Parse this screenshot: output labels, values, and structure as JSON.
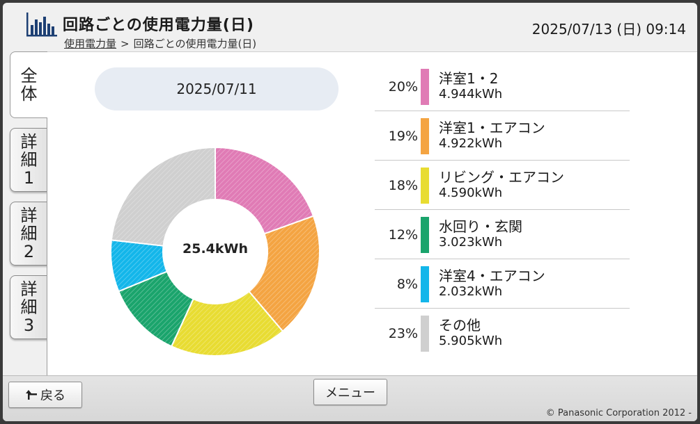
{
  "header": {
    "title": "回路ごとの使用電力量(日)",
    "breadcrumb": {
      "link": "使用電力量",
      "separator": ">",
      "current": "回路ごとの使用電力量(日)"
    },
    "datetime": "2025/07/13 (日) 09:14",
    "logo_icon": "bar-chart-logo-icon"
  },
  "tabs": [
    {
      "id": "all",
      "lines": [
        "全",
        "体"
      ],
      "active": true
    },
    {
      "id": "d1",
      "lines": [
        "詳",
        "細",
        "1"
      ],
      "active": false
    },
    {
      "id": "d2",
      "lines": [
        "詳",
        "細",
        "2"
      ],
      "active": false
    },
    {
      "id": "d3",
      "lines": [
        "詳",
        "細",
        "3"
      ],
      "active": false
    }
  ],
  "main": {
    "date": "2025/07/11",
    "total": "25.4kWh"
  },
  "chart_data": {
    "type": "pie",
    "categories": [
      "洋室1・2",
      "洋室1・エアコン",
      "リビング・エアコン",
      "水回り・玄関",
      "洋室4・エアコン",
      "その他"
    ],
    "values": [
      4.944,
      4.922,
      4.59,
      3.023,
      2.032,
      5.905
    ],
    "percent_labels": [
      "20%",
      "19%",
      "18%",
      "12%",
      "8%",
      "23%"
    ],
    "value_labels": [
      "4.944kWh",
      "4.922kWh",
      "4.590kWh",
      "3.023kWh",
      "2.032kWh",
      "5.905kWh"
    ],
    "colors": [
      "#e07bb5",
      "#f4a442",
      "#e8dc32",
      "#1aa46c",
      "#13b6ea",
      "#cfcfcf"
    ],
    "center_label": "25.4kWh",
    "legend_placement": "right"
  },
  "footer": {
    "back_label": "戻る",
    "back_icon": "return-arrow-icon",
    "menu_label": "メニュー",
    "copyright": "© Panasonic Corporation 2012 -"
  }
}
